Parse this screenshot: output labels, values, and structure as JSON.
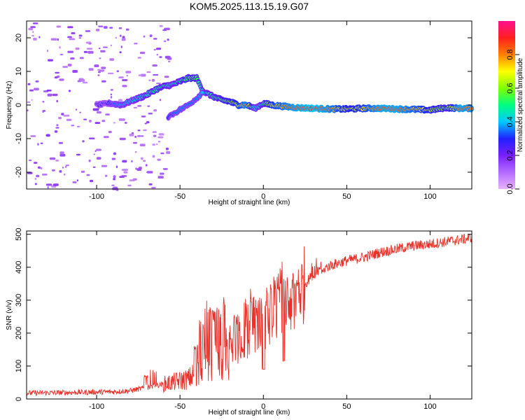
{
  "title": "KOM5.2025.113.15.19.G07",
  "chart_data": [
    {
      "type": "heatmap",
      "xlabel": "Height of straight line (km)",
      "ylabel": "Frequency (Hz)",
      "xlim": [
        -142,
        125
      ],
      "ylim": [
        -25,
        25
      ],
      "xticks": [
        -100,
        -50,
        0,
        50,
        100
      ],
      "yticks": [
        -20,
        -10,
        0,
        10,
        20
      ],
      "colorbar": {
        "label": "Normalized spectral amplitude",
        "range": [
          0,
          1
        ],
        "ticks": [
          "0.0",
          "0.2",
          "0.4",
          "0.6",
          "0.8"
        ],
        "colors": [
          "#e6b3ff",
          "#b36bff",
          "#7a1fff",
          "#2020ff",
          "#00c8ff",
          "#00ff80",
          "#80ff00",
          "#ffff00",
          "#ff8000",
          "#ff2020",
          "#ff1090"
        ]
      },
      "ridge": {
        "name": "main frequency trace",
        "points": [
          [
            -100,
            0.0,
            0.25
          ],
          [
            -92,
            0.5,
            0.3
          ],
          [
            -85,
            0.0,
            0.4
          ],
          [
            -80,
            1.0,
            0.4
          ],
          [
            -75,
            2.0,
            0.45
          ],
          [
            -70,
            3.0,
            0.45
          ],
          [
            -65,
            4.5,
            0.5
          ],
          [
            -60,
            5.5,
            0.5
          ],
          [
            -55,
            6.0,
            0.45
          ],
          [
            -50,
            7.0,
            0.5
          ],
          [
            -45,
            8.0,
            0.55
          ],
          [
            -40,
            8.0,
            0.55
          ],
          [
            -36,
            4.0,
            0.45
          ],
          [
            -30,
            2.5,
            0.5
          ],
          [
            -25,
            1.5,
            0.55
          ],
          [
            -20,
            1.0,
            0.6
          ],
          [
            -15,
            0.0,
            0.7
          ],
          [
            -10,
            0.0,
            0.8
          ],
          [
            -5,
            -1.0,
            0.4
          ],
          [
            0,
            0.5,
            0.5
          ],
          [
            5,
            0.0,
            0.7
          ],
          [
            10,
            -0.3,
            0.75
          ],
          [
            20,
            -0.8,
            0.85
          ],
          [
            30,
            -1.0,
            0.9
          ],
          [
            40,
            -1.2,
            0.8
          ],
          [
            50,
            -1.2,
            0.65
          ],
          [
            60,
            -1.0,
            0.7
          ],
          [
            70,
            -1.0,
            0.85
          ],
          [
            80,
            -1.2,
            0.85
          ],
          [
            90,
            -1.3,
            0.75
          ],
          [
            100,
            -1.5,
            0.65
          ],
          [
            110,
            -0.8,
            0.55
          ],
          [
            118,
            -1.0,
            0.85
          ],
          [
            125,
            -1.0,
            0.8
          ]
        ]
      },
      "secondary_branch": {
        "name": "lower branch",
        "points": [
          [
            -57,
            -3.5,
            0.3
          ],
          [
            -52,
            -2.0,
            0.35
          ],
          [
            -45,
            0.0,
            0.35
          ],
          [
            -40,
            2.0,
            0.35
          ],
          [
            -36,
            4.0,
            0.4
          ]
        ]
      }
    },
    {
      "type": "line",
      "xlabel": "Height of straight line (km)",
      "ylabel": "SNR (v/v)",
      "xlim": [
        -142,
        125
      ],
      "ylim": [
        0,
        510
      ],
      "xticks": [
        -100,
        -50,
        0,
        50,
        100
      ],
      "yticks": [
        0,
        100,
        200,
        300,
        400,
        500
      ],
      "series": [
        {
          "color": "#e8312a",
          "trend": [
            [
              -142,
              18
            ],
            [
              -110,
              20
            ],
            [
              -90,
              22
            ],
            [
              -80,
              25
            ],
            [
              -70,
              35
            ],
            [
              -60,
              45
            ],
            [
              -50,
              55
            ],
            [
              -45,
              60
            ],
            [
              -40,
              80
            ],
            [
              -35,
              110
            ],
            [
              -30,
              110
            ],
            [
              -25,
              105
            ],
            [
              -20,
              130
            ],
            [
              -15,
              170
            ],
            [
              -10,
              180
            ],
            [
              -5,
              210
            ],
            [
              0,
              220
            ],
            [
              5,
              240
            ],
            [
              10,
              265
            ],
            [
              15,
              290
            ],
            [
              20,
              320
            ],
            [
              25,
              350
            ],
            [
              30,
              380
            ],
            [
              40,
              405
            ],
            [
              50,
              420
            ],
            [
              60,
              430
            ],
            [
              70,
              445
            ],
            [
              80,
              455
            ],
            [
              90,
              465
            ],
            [
              100,
              470
            ],
            [
              110,
              478
            ],
            [
              120,
              485
            ],
            [
              125,
              490
            ]
          ],
          "spikes": [
            [
              -70,
              75
            ],
            [
              -66,
              95
            ],
            [
              -40,
              170
            ],
            [
              -37,
              250
            ],
            [
              -34,
              300
            ],
            [
              -33,
              280
            ],
            [
              -30,
              270
            ],
            [
              -27,
              285
            ],
            [
              -24,
              310
            ],
            [
              -21,
              230
            ],
            [
              -16,
              260
            ],
            [
              -10,
              310
            ],
            [
              -6,
              340
            ],
            [
              -2,
              320
            ],
            [
              0,
              290
            ],
            [
              3,
              350
            ],
            [
              8,
              385
            ],
            [
              11,
              420
            ],
            [
              16,
              370
            ],
            [
              20,
              400
            ],
            [
              30,
              430
            ],
            [
              35,
              420
            ]
          ],
          "dips": [
            [
              0,
              90
            ],
            [
              12,
              115
            ]
          ]
        }
      ]
    }
  ]
}
